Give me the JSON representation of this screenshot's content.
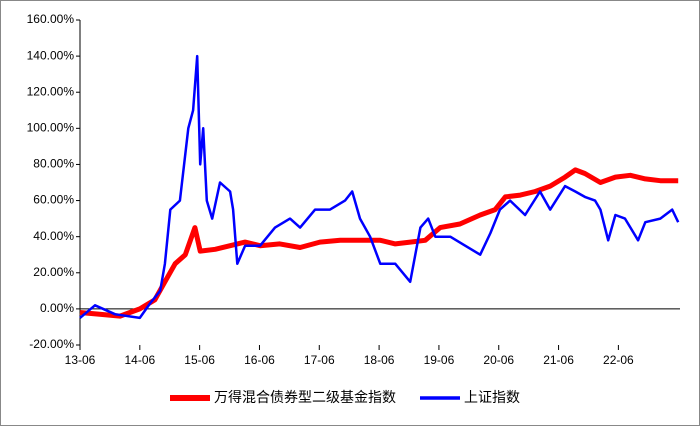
{
  "chart_data": {
    "type": "line",
    "xlim": [
      2013.5,
      2023.53
    ],
    "ylim": [
      -20,
      160
    ],
    "xticks": [
      {
        "value": 2013.5,
        "label": "13-06"
      },
      {
        "value": 2014.5,
        "label": "14-06"
      },
      {
        "value": 2015.5,
        "label": "15-06"
      },
      {
        "value": 2016.5,
        "label": "16-06"
      },
      {
        "value": 2017.5,
        "label": "17-06"
      },
      {
        "value": 2018.5,
        "label": "18-06"
      },
      {
        "value": 2019.5,
        "label": "19-06"
      },
      {
        "value": 2020.5,
        "label": "20-06"
      },
      {
        "value": 2021.5,
        "label": "21-06"
      },
      {
        "value": 2022.5,
        "label": "22-06"
      }
    ],
    "yticks": [
      {
        "value": -20,
        "label": "-20.00%"
      },
      {
        "value": 0,
        "label": "0.00%"
      },
      {
        "value": 20,
        "label": "20.00%"
      },
      {
        "value": 40,
        "label": "40.00%"
      },
      {
        "value": 60,
        "label": "60.00%"
      },
      {
        "value": 80,
        "label": "80.00%"
      },
      {
        "value": 100,
        "label": "100.00%"
      },
      {
        "value": 120,
        "label": "120.00%"
      },
      {
        "value": 140,
        "label": "140.00%"
      },
      {
        "value": 160,
        "label": "160.00%"
      }
    ],
    "grid": false,
    "series": [
      {
        "name": "万得混合债券型二级基金指数",
        "color": "#ff0000",
        "width": 5,
        "x": [
          2013.5,
          2013.83,
          2014.17,
          2014.5,
          2014.75,
          2014.92,
          2015.09,
          2015.26,
          2015.42,
          2015.51,
          2015.76,
          2016.01,
          2016.26,
          2016.51,
          2016.84,
          2017.18,
          2017.51,
          2017.85,
          2018.18,
          2018.52,
          2018.77,
          2019.02,
          2019.27,
          2019.52,
          2019.85,
          2020.19,
          2020.44,
          2020.61,
          2020.86,
          2021.11,
          2021.36,
          2021.61,
          2021.78,
          2021.94,
          2022.2,
          2022.45,
          2022.7,
          2022.95,
          2023.2,
          2023.5
        ],
        "values": [
          -2,
          -3,
          -4,
          0,
          5,
          15,
          25,
          30,
          45,
          32,
          33,
          35,
          37,
          35,
          36,
          34,
          37,
          38,
          38,
          38,
          36,
          37,
          38,
          45,
          47,
          52,
          55,
          62,
          63,
          65,
          68,
          73,
          77,
          75,
          70,
          73,
          74,
          72,
          71,
          71
        ]
      },
      {
        "name": "上证指数",
        "color": "#0000ff",
        "width": 2.5,
        "x": [
          2013.5,
          2013.75,
          2014.09,
          2014.5,
          2014.67,
          2014.84,
          2014.92,
          2015.01,
          2015.17,
          2015.31,
          2015.39,
          2015.46,
          2015.51,
          2015.56,
          2015.62,
          2015.71,
          2015.84,
          2016.01,
          2016.06,
          2016.13,
          2016.26,
          2016.51,
          2016.76,
          2017.01,
          2017.18,
          2017.43,
          2017.68,
          2017.93,
          2018.05,
          2018.18,
          2018.35,
          2018.52,
          2018.77,
          2019.02,
          2019.19,
          2019.32,
          2019.44,
          2019.69,
          2019.94,
          2020.19,
          2020.36,
          2020.52,
          2020.69,
          2020.94,
          2021.19,
          2021.36,
          2021.61,
          2021.78,
          2021.94,
          2022.11,
          2022.2,
          2022.33,
          2022.45,
          2022.61,
          2022.83,
          2022.95,
          2023.2,
          2023.4,
          2023.5
        ],
        "values": [
          -5,
          2,
          -3,
          -5,
          3,
          10,
          25,
          55,
          60,
          100,
          110,
          140,
          80,
          100,
          60,
          50,
          70,
          65,
          55,
          25,
          35,
          35,
          45,
          50,
          45,
          55,
          55,
          60,
          65,
          50,
          40,
          25,
          25,
          15,
          45,
          50,
          40,
          40,
          35,
          30,
          42,
          55,
          60,
          52,
          65,
          55,
          68,
          65,
          62,
          60,
          55,
          38,
          52,
          50,
          38,
          48,
          50,
          55,
          48
        ]
      }
    ]
  }
}
